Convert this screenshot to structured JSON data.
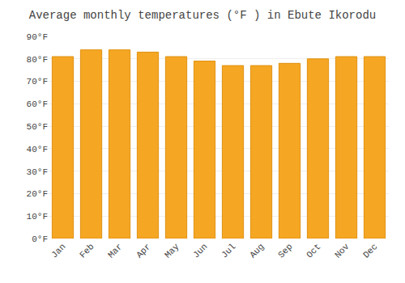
{
  "chart_data": {
    "type": "bar",
    "title": "Average monthly temperatures (°F ) in Ebute Ikorodu",
    "categories": [
      "Jan",
      "Feb",
      "Mar",
      "Apr",
      "May",
      "Jun",
      "Jul",
      "Aug",
      "Sep",
      "Oct",
      "Nov",
      "Dec"
    ],
    "values": [
      81,
      84,
      84,
      83,
      81,
      79,
      77,
      77,
      78,
      80,
      81,
      81
    ],
    "color": "#F5A623",
    "ylim": [
      0,
      90
    ],
    "yticks": [
      {
        "value": 0,
        "label": "0°F"
      },
      {
        "value": 10,
        "label": "10°F"
      },
      {
        "value": 20,
        "label": "20°F"
      },
      {
        "value": 30,
        "label": "30°F"
      },
      {
        "value": 40,
        "label": "40°F"
      },
      {
        "value": 50,
        "label": "50°F"
      },
      {
        "value": 60,
        "label": "60°F"
      },
      {
        "value": 70,
        "label": "70°F"
      },
      {
        "value": 80,
        "label": "80°F"
      },
      {
        "value": 90,
        "label": "90°F"
      }
    ],
    "grid": true
  }
}
